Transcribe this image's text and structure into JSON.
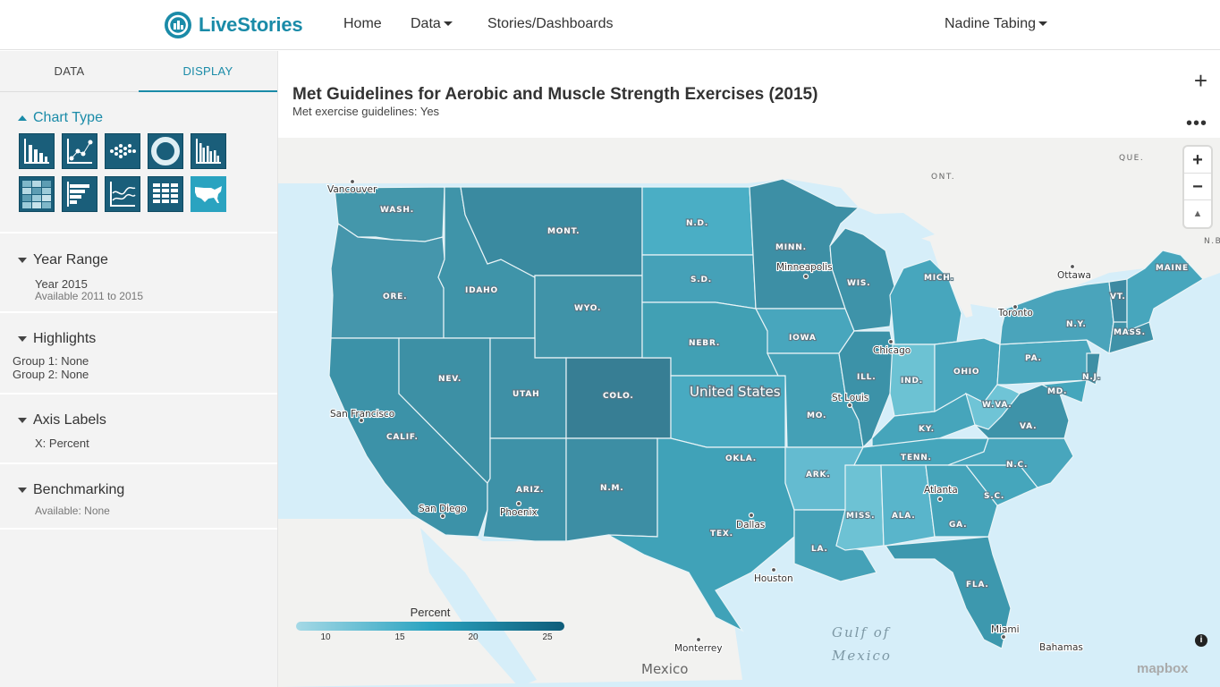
{
  "nav": {
    "logo_text": "LiveStories",
    "home": "Home",
    "data": "Data",
    "stories": "Stories/Dashboards",
    "user": "Nadine Tabing"
  },
  "sidebar": {
    "tabs": [
      "DATA",
      "DISPLAY"
    ],
    "active_tab": "DISPLAY",
    "chart_type": {
      "title": "Chart Type",
      "icons": [
        "column-chart-icon",
        "scatter-chart-icon",
        "dot-plot-icon",
        "donut-chart-icon",
        "grouped-column-chart-icon",
        "heatmap-icon",
        "bar-chart-icon",
        "line-chart-icon",
        "table-icon",
        "us-map-icon"
      ],
      "selected": "us-map-icon"
    },
    "year_range": {
      "title": "Year Range",
      "line1": "Year 2015",
      "line2": "Available 2011 to 2015"
    },
    "highlights": {
      "title": "Highlights",
      "line1": "Group 1: None",
      "line2": "Group 2: None"
    },
    "axis_labels": {
      "title": "Axis Labels",
      "line1": "X: Percent"
    },
    "benchmarking": {
      "title": "Benchmarking",
      "line1": "Available: None"
    }
  },
  "chart": {
    "title": "Met Guidelines for Aerobic and Muscle Strength Exercises (2015)",
    "subtitle": "Met exercise guidelines: Yes",
    "legend_title": "Percent",
    "legend_ticks": [
      "10",
      "15",
      "20",
      "25"
    ],
    "zoom_in": "+",
    "zoom_out": "−",
    "compass": "▲",
    "add_button": "+",
    "more_button": "•••",
    "info": "i",
    "attribution": "mapbox"
  },
  "map_labels": {
    "states": [
      "WASH.",
      "ORE.",
      "CALIF.",
      "IDAHO",
      "NEV.",
      "MONT.",
      "WYO.",
      "UTAH",
      "COLO.",
      "ARIZ.",
      "N.M.",
      "N.D.",
      "S.D.",
      "NEBR.",
      "OKLA.",
      "TEX.",
      "MINN.",
      "IOWA",
      "MO.",
      "ARK.",
      "LA.",
      "WIS.",
      "ILL.",
      "MISS.",
      "MICH.",
      "IND.",
      "KY.",
      "TENN.",
      "ALA.",
      "OHIO",
      "W.VA.",
      "GA.",
      "FLA.",
      "S.C.",
      "N.C.",
      "VA.",
      "PA.",
      "N.Y.",
      "MD.",
      "N.J.",
      "VT.",
      "MASS.",
      "MAINE"
    ],
    "cities": [
      "Vancouver",
      "San Francisco",
      "San Diego",
      "Phoenix",
      "Dallas",
      "Houston",
      "Minneapolis",
      "Chicago",
      "St Louis",
      "Atlanta",
      "Miami",
      "Toronto",
      "Ottawa",
      "Monterrey",
      "Bahamas"
    ],
    "countries": {
      "us": "United States",
      "mexico": "Mexico",
      "ont": "ONT.",
      "que": "QUE.",
      "nb": "N.B."
    },
    "water": [
      "Gulf of",
      "Mexico"
    ]
  },
  "colors": {
    "brand": "#1a8ba8",
    "map_water": "#d6eef9",
    "legend_low": "#a5d9e6",
    "legend_high": "#0f5d7a"
  }
}
